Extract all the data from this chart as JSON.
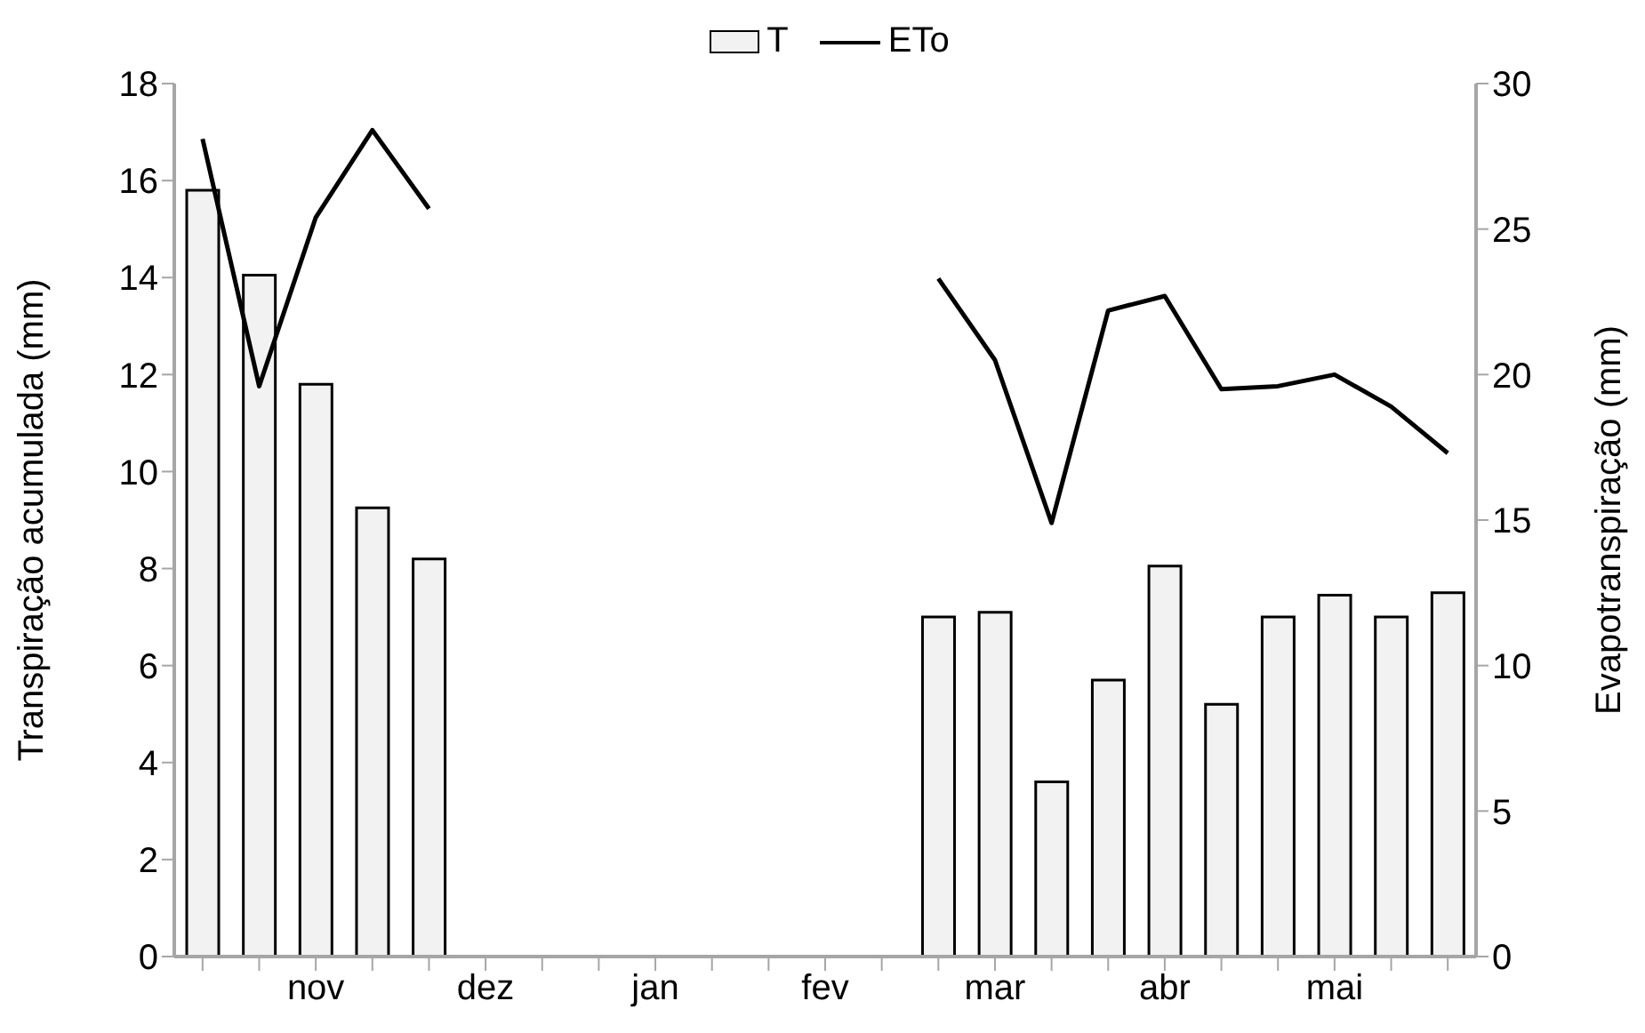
{
  "chart_data": {
    "type": "bar",
    "categories": [
      null,
      null,
      "nov",
      null,
      null,
      "dez",
      null,
      null,
      "jan",
      null,
      null,
      "fev",
      null,
      null,
      "mar",
      null,
      null,
      "abr",
      null,
      null,
      "mai",
      null,
      null
    ],
    "series": [
      {
        "name": "T",
        "color": "#f2f2f2",
        "values": [
          15.8,
          14.05,
          11.8,
          9.25,
          8.2,
          null,
          null,
          null,
          null,
          null,
          null,
          null,
          null,
          7.0,
          7.1,
          3.6,
          5.7,
          8.05,
          5.2,
          7.0,
          7.45,
          7.0,
          7.5
        ]
      },
      {
        "name": "ETo",
        "type": "line",
        "axis": "y2",
        "color": "#000000",
        "values": [
          28.1,
          19.6,
          25.4,
          28.4,
          25.7,
          null,
          null,
          null,
          null,
          null,
          null,
          null,
          null,
          23.3,
          20.5,
          14.9,
          22.2,
          22.7,
          19.5,
          19.6,
          20.0,
          18.9,
          17.3
        ]
      }
    ],
    "ylabel": "Transpiração acumulada (mm)",
    "y2label": "Evapotranspiração (mm)",
    "ylim": [
      0,
      18
    ],
    "yticks": [
      0,
      2,
      4,
      6,
      8,
      10,
      12,
      14,
      16,
      18
    ],
    "y2lim": [
      0,
      30
    ],
    "y2ticks": [
      0,
      5,
      10,
      15,
      20,
      25,
      30
    ],
    "legend": "top",
    "marker": "none",
    "grid": false
  }
}
